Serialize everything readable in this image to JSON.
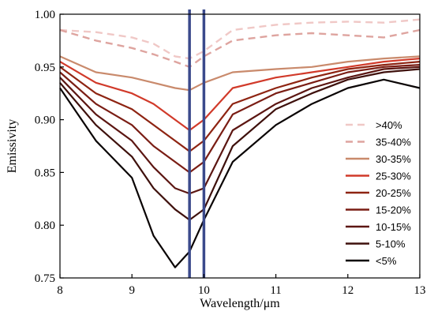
{
  "chart_data": {
    "type": "line",
    "xlabel": "Wavelength/μm",
    "ylabel": "Emissivity",
    "xlim": [
      8,
      13
    ],
    "ylim": [
      0.75,
      1.0
    ],
    "x_ticks": [
      8,
      9,
      10,
      11,
      12,
      13
    ],
    "y_ticks": [
      0.75,
      0.8,
      0.85,
      0.9,
      0.95,
      1.0
    ],
    "y_tick_labels": [
      "0.75",
      "0.80",
      "0.85",
      "0.90",
      "0.95",
      "1.00"
    ],
    "grid": false,
    "legend_position": "right",
    "vertical_markers": [
      {
        "x": 9.8,
        "color": "#3b4a8c"
      },
      {
        "x": 10.0,
        "color": "#3b4a8c"
      }
    ],
    "x": [
      8.0,
      8.5,
      9.0,
      9.3,
      9.6,
      9.8,
      10.0,
      10.4,
      11.0,
      11.5,
      12.0,
      12.5,
      13.0
    ],
    "series": [
      {
        "name": ">40%",
        "color": "#f0c8c6",
        "dashed": true,
        "values": [
          0.985,
          0.983,
          0.978,
          0.972,
          0.96,
          0.958,
          0.965,
          0.985,
          0.99,
          0.992,
          0.993,
          0.992,
          0.995
        ]
      },
      {
        "name": "35-40%",
        "color": "#dea49f",
        "dashed": true,
        "values": [
          0.985,
          0.975,
          0.968,
          0.962,
          0.955,
          0.95,
          0.96,
          0.975,
          0.98,
          0.982,
          0.98,
          0.978,
          0.985
        ]
      },
      {
        "name": "30-35%",
        "color": "#c98a6c",
        "dashed": false,
        "values": [
          0.96,
          0.945,
          0.94,
          0.935,
          0.93,
          0.928,
          0.935,
          0.945,
          0.948,
          0.95,
          0.955,
          0.958,
          0.96
        ]
      },
      {
        "name": "25-30%",
        "color": "#d13a2a",
        "dashed": false,
        "values": [
          0.955,
          0.935,
          0.925,
          0.915,
          0.9,
          0.89,
          0.9,
          0.93,
          0.94,
          0.945,
          0.95,
          0.955,
          0.958
        ]
      },
      {
        "name": "20-25%",
        "color": "#8e2412",
        "dashed": false,
        "values": [
          0.95,
          0.925,
          0.91,
          0.895,
          0.88,
          0.87,
          0.88,
          0.915,
          0.93,
          0.94,
          0.948,
          0.952,
          0.955
        ]
      },
      {
        "name": "15-20%",
        "color": "#7a1d14",
        "dashed": false,
        "values": [
          0.945,
          0.915,
          0.895,
          0.875,
          0.86,
          0.85,
          0.86,
          0.905,
          0.925,
          0.935,
          0.945,
          0.95,
          0.952
        ]
      },
      {
        "name": "10-15%",
        "color": "#5c1612",
        "dashed": false,
        "values": [
          0.94,
          0.905,
          0.88,
          0.855,
          0.835,
          0.83,
          0.835,
          0.89,
          0.915,
          0.93,
          0.94,
          0.948,
          0.95
        ]
      },
      {
        "name": "5-10%",
        "color": "#3e100c",
        "dashed": false,
        "values": [
          0.935,
          0.895,
          0.865,
          0.835,
          0.815,
          0.805,
          0.815,
          0.875,
          0.91,
          0.925,
          0.938,
          0.945,
          0.948
        ]
      },
      {
        "name": "<5%",
        "color": "#0a0404",
        "dashed": false,
        "values": [
          0.93,
          0.88,
          0.845,
          0.79,
          0.76,
          0.775,
          0.805,
          0.86,
          0.895,
          0.915,
          0.93,
          0.938,
          0.93
        ]
      }
    ]
  }
}
